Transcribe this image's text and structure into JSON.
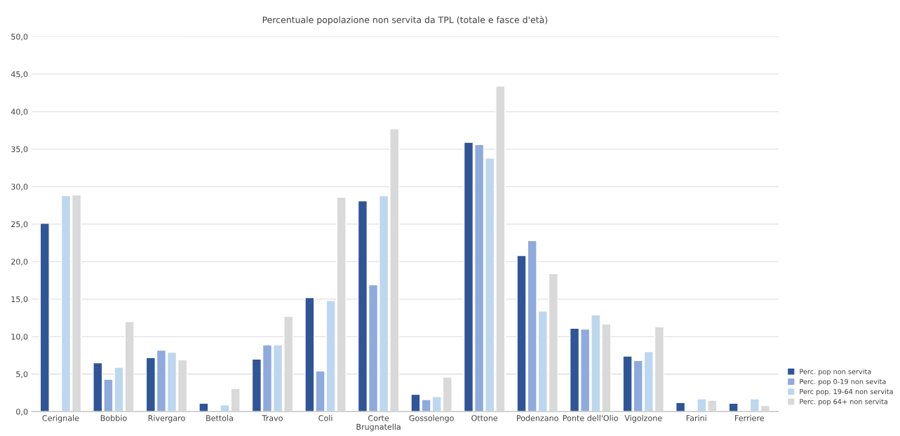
{
  "chart_data": {
    "type": "bar",
    "title": "Percentuale popolazione non servita da TPL (totale e fasce d'età)",
    "categories": [
      "Cerignale",
      "Bobbio",
      "Rivergaro",
      "Bettola",
      "Travo",
      "Coli",
      "Corte\nBrugnatella",
      "Gossolengo",
      "Ottone",
      "Podenzano",
      "Ponte dell'Olio",
      "Vigolzone",
      "Farini",
      "Ferriere"
    ],
    "series": [
      {
        "name": "Perc. pop non servita",
        "color": "#2f5597",
        "values": [
          25.1,
          6.5,
          7.2,
          1.1,
          7.0,
          15.2,
          28.1,
          2.3,
          35.9,
          20.8,
          11.1,
          7.4,
          1.2,
          1.1
        ]
      },
      {
        "name": "Perc. pop 0-19 non sevita",
        "color": "#8faadc",
        "values": [
          null,
          4.3,
          8.2,
          null,
          8.9,
          5.4,
          16.9,
          1.6,
          35.6,
          22.8,
          11.0,
          6.8,
          null,
          null
        ]
      },
      {
        "name": "Perc pop. 19-64 non servita",
        "color": "#bdd7ee",
        "values": [
          28.8,
          5.9,
          7.9,
          0.9,
          8.9,
          14.8,
          28.8,
          2.0,
          33.8,
          13.4,
          12.9,
          8.0,
          1.7,
          1.7
        ]
      },
      {
        "name": "Perc. pop 64+ non servita",
        "color": "#d9d9d9",
        "values": [
          28.9,
          12.0,
          6.9,
          3.1,
          12.7,
          28.6,
          37.7,
          4.6,
          43.4,
          18.4,
          11.7,
          11.3,
          1.5,
          0.8
        ]
      }
    ],
    "ylim": [
      0,
      50
    ],
    "yticks": [
      {
        "value": 0,
        "label": "0,0"
      },
      {
        "value": 5,
        "label": "5,0"
      },
      {
        "value": 10,
        "label": "10,0"
      },
      {
        "value": 15,
        "label": "15,0"
      },
      {
        "value": 20,
        "label": "20,0"
      },
      {
        "value": 25,
        "label": "25,0"
      },
      {
        "value": 30,
        "label": "30,0"
      },
      {
        "value": 35,
        "label": "35,0"
      },
      {
        "value": 40,
        "label": "40,0"
      },
      {
        "value": 45,
        "label": "45,0"
      },
      {
        "value": 50,
        "label": "50,0"
      }
    ],
    "grid": "y",
    "legend": "right"
  }
}
